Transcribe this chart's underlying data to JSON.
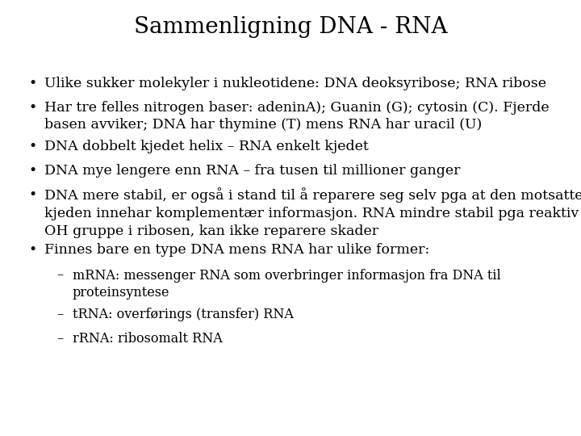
{
  "title": "Sammenligning DNA - RNA",
  "background_color": "#ffffff",
  "text_color": "#000000",
  "title_fontsize": 20,
  "body_fontsize": 12.5,
  "sub_fontsize": 11.5,
  "bullet_points": [
    "Ulike sukker molekyler i nukleotidene: DNA deoksyribose; RNA ribose",
    "Har tre felles nitrogen baser: adeninA); Guanin (G); cytosin (C). Fjerde\nbasen avviker; DNA har thymine (T) mens RNA har uracil (U)",
    "DNA dobbelt kjedet helix – RNA enkelt kjedet",
    "DNA mye lengere enn RNA – fra tusen til millioner ganger",
    "DNA mere stabil, er også i stand til å reparere seg selv pga at den motsatte\nkjeden innehar komplementær informasjon. RNA mindre stabil pga reaktiv -\nOH gruppe i ribosen, kan ikke reparere skader",
    "Finnes bare en type DNA mens RNA har ulike former:"
  ],
  "bullet_lines": [
    1,
    2,
    1,
    1,
    3,
    1
  ],
  "sub_bullets": [
    "mRNA: messenger RNA som overbringer informasjon fra DNA til\nproteinsyntese",
    "tRNA: overførings (transfer) RNA",
    "rRNA: ribosomalt RNA"
  ],
  "sub_bullet_lines": [
    2,
    1,
    1
  ],
  "font_family": "DejaVu Serif"
}
